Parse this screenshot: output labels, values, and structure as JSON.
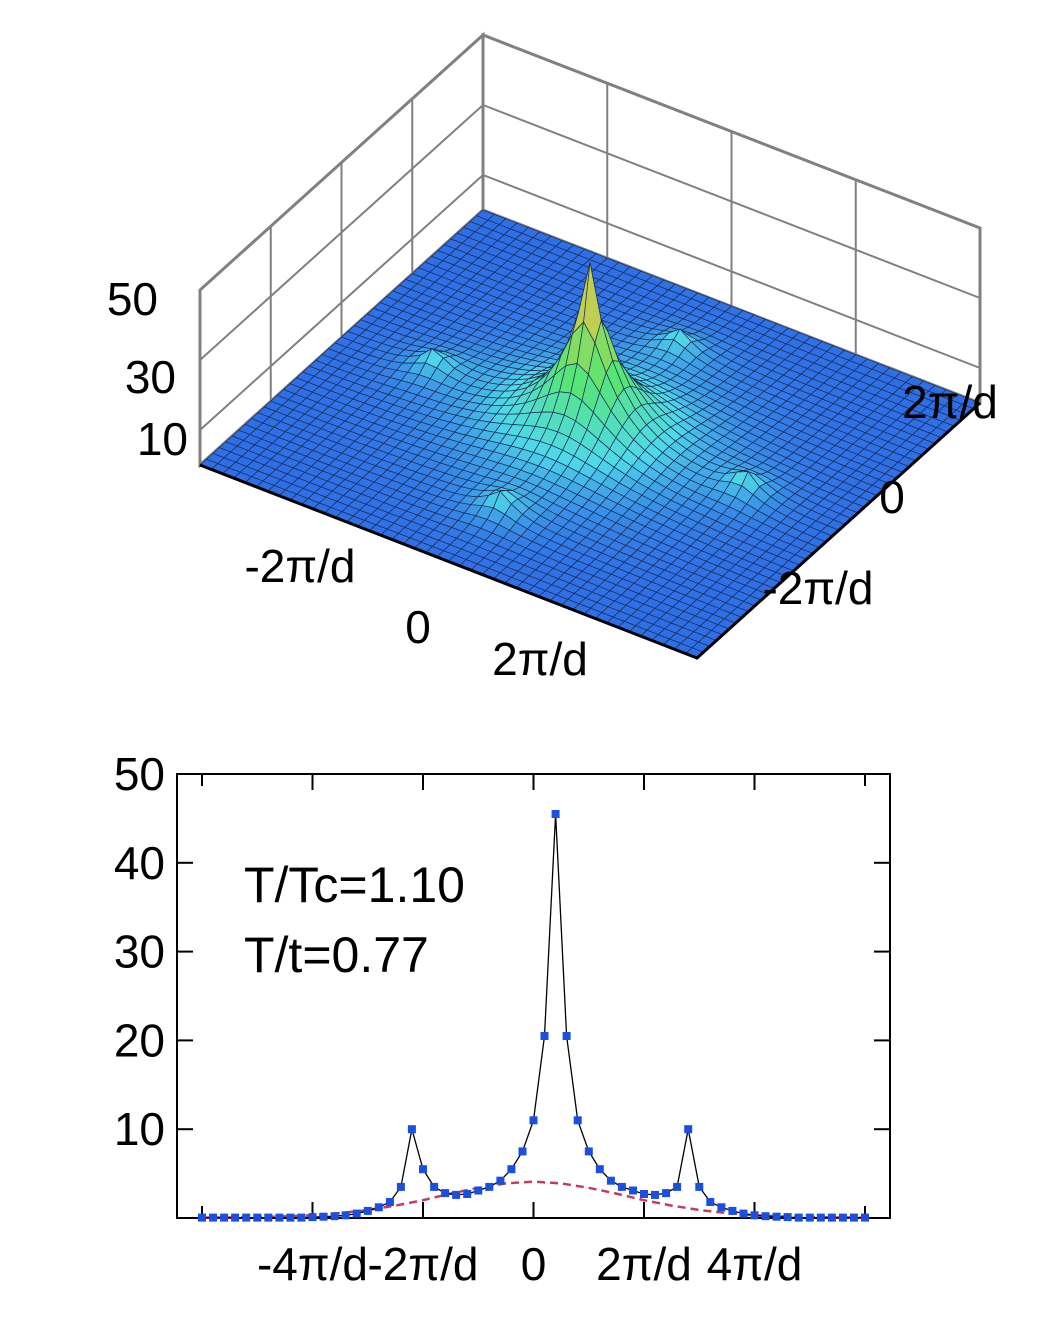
{
  "chart_data": [
    {
      "type": "surface",
      "title": "",
      "z_ticks": [
        "10",
        "30",
        "50"
      ],
      "x_ticks": [
        "-2π/d",
        "0",
        "2π/d"
      ],
      "y_ticks": [
        "-2π/d",
        "0",
        "2π/d"
      ],
      "z_range": [
        0,
        50
      ],
      "main_peak": {
        "kx": 0,
        "ky": 0,
        "value": 45
      },
      "satellite_peaks": [
        {
          "kx": 2,
          "ky": 0,
          "value": 10
        },
        {
          "kx": -2,
          "ky": 0,
          "value": 10
        },
        {
          "kx": 0,
          "ky": 2,
          "value": 10
        },
        {
          "kx": 0,
          "ky": -2,
          "value": 10
        }
      ],
      "peak_units": "π/d",
      "colors": {
        "surface_low": "#2f6fe6",
        "surface_mid": "#4fd9e8",
        "surface_high": "#f5c342",
        "grid_line": "#1a2a55",
        "box": "#808080"
      }
    },
    {
      "type": "line",
      "title": "",
      "xlabel": "",
      "ylabel": "",
      "annotations": [
        "T/Tc=1.10",
        "T/t=0.77"
      ],
      "x_ticks": [
        "-4π/d",
        "-2π/d",
        "0",
        "2π/d",
        "4π/d"
      ],
      "y_ticks": [
        "10",
        "20",
        "30",
        "40",
        "50"
      ],
      "xlim": [
        -6,
        6
      ],
      "ylim": [
        0,
        50
      ],
      "x_units": "π/d",
      "series": [
        {
          "style": "line-markers",
          "color": "#1a4fe0",
          "x": [
            -6.0,
            -5.8,
            -5.6,
            -5.4,
            -5.2,
            -5.0,
            -4.8,
            -4.6,
            -4.4,
            -4.2,
            -4.0,
            -3.8,
            -3.6,
            -3.4,
            -3.2,
            -3.0,
            -2.8,
            -2.6,
            -2.4,
            -2.2,
            -2.0,
            -1.8,
            -1.6,
            -1.4,
            -1.2,
            -1.0,
            -0.8,
            -0.6,
            -0.4,
            -0.2,
            0.0,
            0.2,
            0.4,
            0.6,
            0.8,
            1.0,
            1.2,
            1.4,
            1.6,
            1.8,
            2.0,
            2.2,
            2.4,
            2.6,
            2.8,
            3.0,
            3.2,
            3.4,
            3.6,
            3.8,
            4.0,
            4.2,
            4.4,
            4.6,
            4.8,
            5.0,
            5.2,
            5.4,
            5.6,
            5.8,
            6.0
          ],
          "values": [
            0.05,
            0.05,
            0.05,
            0.05,
            0.05,
            0.05,
            0.05,
            0.05,
            0.05,
            0.05,
            0.1,
            0.15,
            0.2,
            0.3,
            0.5,
            0.8,
            1.2,
            1.8,
            3.5,
            10.0,
            5.5,
            3.5,
            2.8,
            2.6,
            2.7,
            3.1,
            3.5,
            4.2,
            5.5,
            7.5,
            11.0,
            20.5,
            45.5,
            20.5,
            11.0,
            7.5,
            5.5,
            4.2,
            3.5,
            3.1,
            2.7,
            2.6,
            2.8,
            3.5,
            10.0,
            3.5,
            1.8,
            1.2,
            0.8,
            0.5,
            0.3,
            0.2,
            0.15,
            0.1,
            0.05,
            0.05,
            0.05,
            0.05,
            0.05,
            0.05,
            0.05
          ]
        },
        {
          "style": "dashed",
          "color": "#c43c5c",
          "x": [
            -6.0,
            -5.5,
            -5.0,
            -4.5,
            -4.0,
            -3.5,
            -3.0,
            -2.5,
            -2.0,
            -1.5,
            -1.0,
            -0.5,
            0.0,
            0.5,
            1.0,
            1.5,
            2.0,
            2.5,
            3.0,
            3.5,
            4.0,
            4.5,
            5.0,
            5.5,
            6.0
          ],
          "values": [
            0.05,
            0.06,
            0.1,
            0.18,
            0.3,
            0.55,
            0.9,
            1.4,
            2.0,
            2.75,
            3.4,
            3.9,
            4.1,
            3.9,
            3.4,
            2.75,
            2.0,
            1.4,
            0.9,
            0.55,
            0.3,
            0.18,
            0.1,
            0.06,
            0.05
          ]
        }
      ]
    }
  ]
}
